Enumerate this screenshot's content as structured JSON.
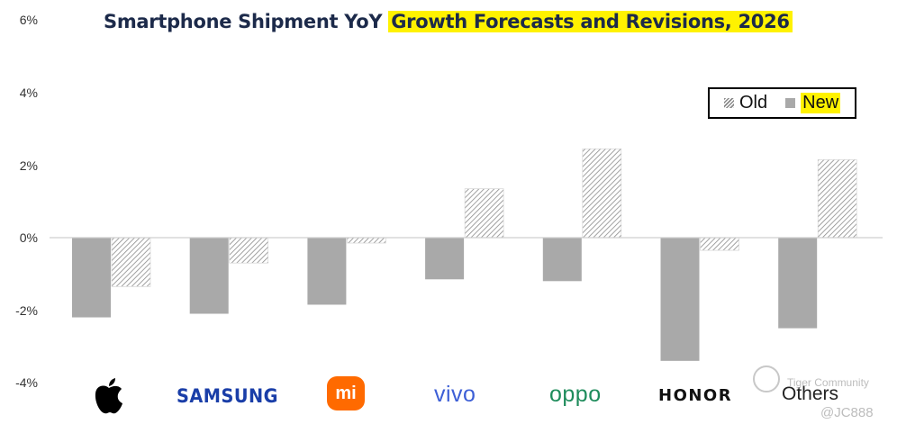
{
  "title_part1": "Smartphone Shipment YoY ",
  "title_part2": "Growth Forecasts and Revisions, 2026",
  "legend": {
    "old": "Old",
    "new": "New"
  },
  "brands": {
    "samsung": "SAMSUNG",
    "xiaomi": "mi",
    "vivo": "vivo",
    "oppo": "oppo",
    "honor": "HONOR",
    "others": "Others"
  },
  "watermark": {
    "text": "Tiger Community",
    "handle": "@JC888"
  },
  "colors": {
    "title": "#1c2a4a",
    "highlight": "#fff200",
    "new_bar": "#a9a9a9",
    "old_hatch": "#8a8a8a"
  },
  "chart_data": {
    "type": "bar",
    "title": "Smartphone Shipment YoY Growth Forecasts and Revisions, 2026",
    "categories": [
      "Apple",
      "Samsung",
      "Xiaomi",
      "vivo",
      "OPPO",
      "HONOR",
      "Others"
    ],
    "series": [
      {
        "name": "New",
        "values": [
          -2.2,
          -2.1,
          -1.85,
          -1.15,
          -1.2,
          -3.4,
          -2.5
        ]
      },
      {
        "name": "Old",
        "values": [
          -1.35,
          -0.7,
          -0.15,
          1.35,
          2.45,
          -0.35,
          2.15
        ]
      }
    ],
    "y_ticks": [
      "6%",
      "4%",
      "2%",
      "0%",
      "-2%",
      "-4%"
    ],
    "ylim": [
      -4,
      6
    ],
    "xlabel": "",
    "ylabel": "",
    "legend_position": "top-right"
  }
}
